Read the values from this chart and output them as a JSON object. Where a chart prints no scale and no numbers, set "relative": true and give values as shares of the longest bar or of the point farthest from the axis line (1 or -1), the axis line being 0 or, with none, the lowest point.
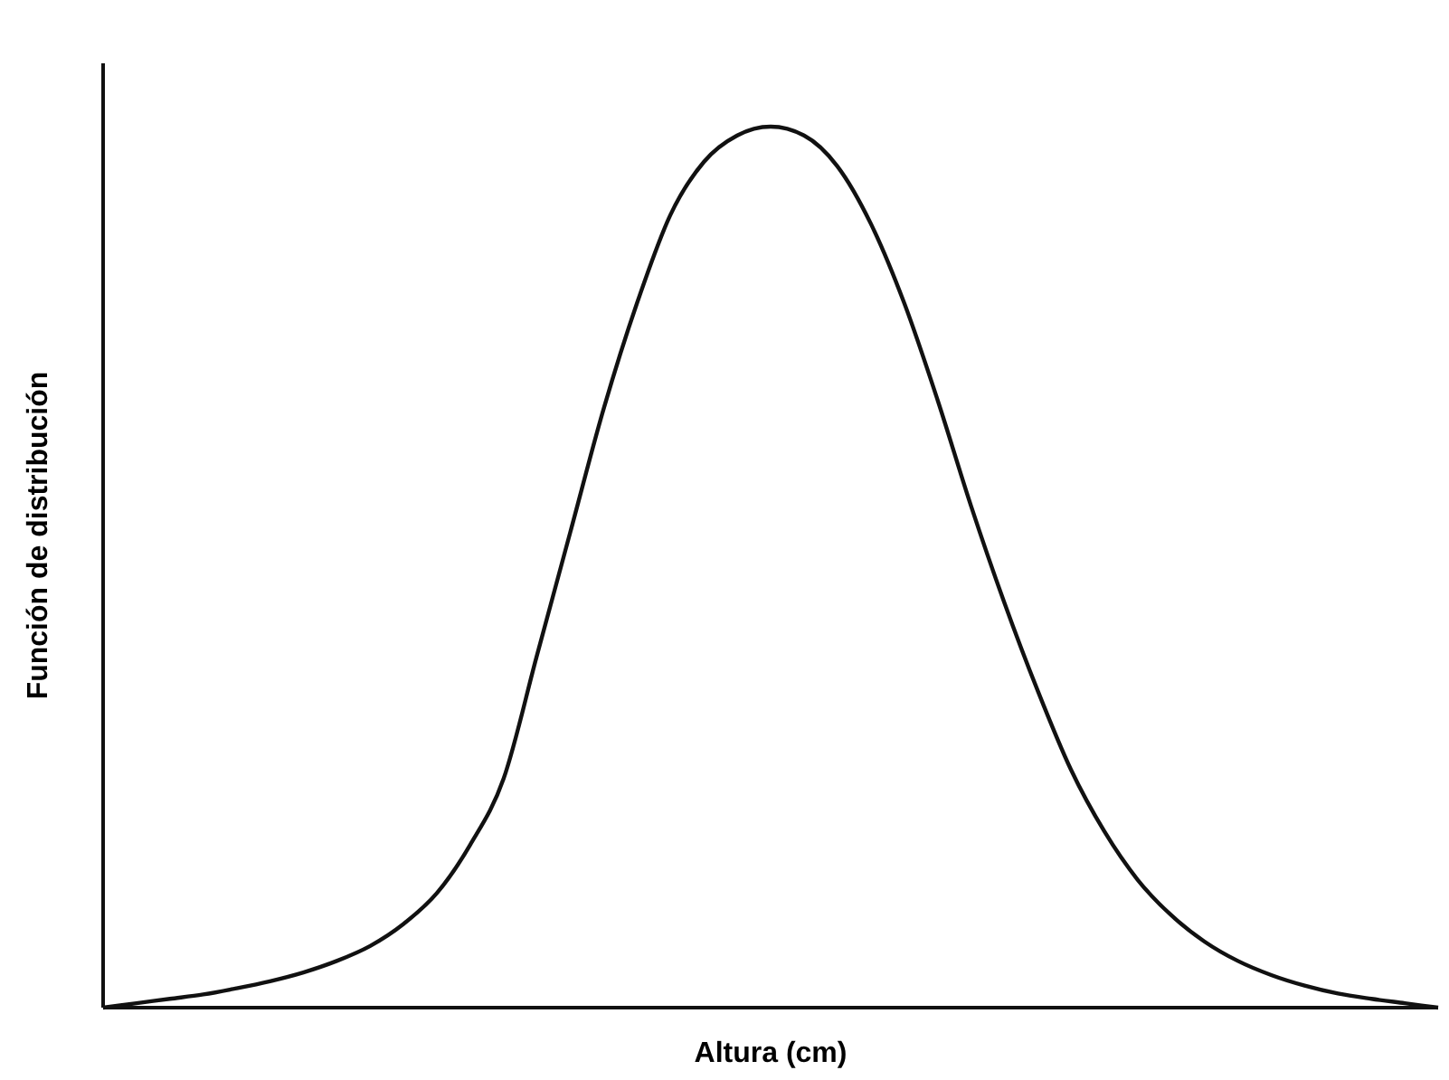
{
  "chart_data": {
    "type": "line",
    "relative": true,
    "xlabel": "Altura (cm)",
    "ylabel": "Función de distribución",
    "categories": [
      null,
      null,
      null,
      null,
      null,
      null,
      null,
      null,
      null,
      null,
      null,
      null,
      null,
      null,
      null,
      null,
      null,
      null,
      null,
      null,
      null,
      null,
      null,
      null,
      null,
      null,
      null,
      null,
      null,
      null,
      null,
      null,
      null,
      null,
      null,
      null,
      null,
      null,
      null,
      null,
      null
    ],
    "series": [
      {
        "color": "#111111",
        "values": [
          0,
          0.005,
          0.01,
          0.015,
          0.022,
          0.03,
          0.04,
          0.053,
          0.07,
          0.095,
          0.13,
          0.185,
          0.26,
          0.4,
          0.54,
          0.68,
          0.8,
          0.9,
          0.96,
          0.99,
          1,
          0.99,
          0.955,
          0.89,
          0.8,
          0.69,
          0.57,
          0.46,
          0.36,
          0.27,
          0.2,
          0.145,
          0.105,
          0.075,
          0.053,
          0.037,
          0.025,
          0.016,
          0.01,
          0.005,
          0
        ]
      }
    ],
    "marker": "none",
    "line_style": "solid"
  }
}
